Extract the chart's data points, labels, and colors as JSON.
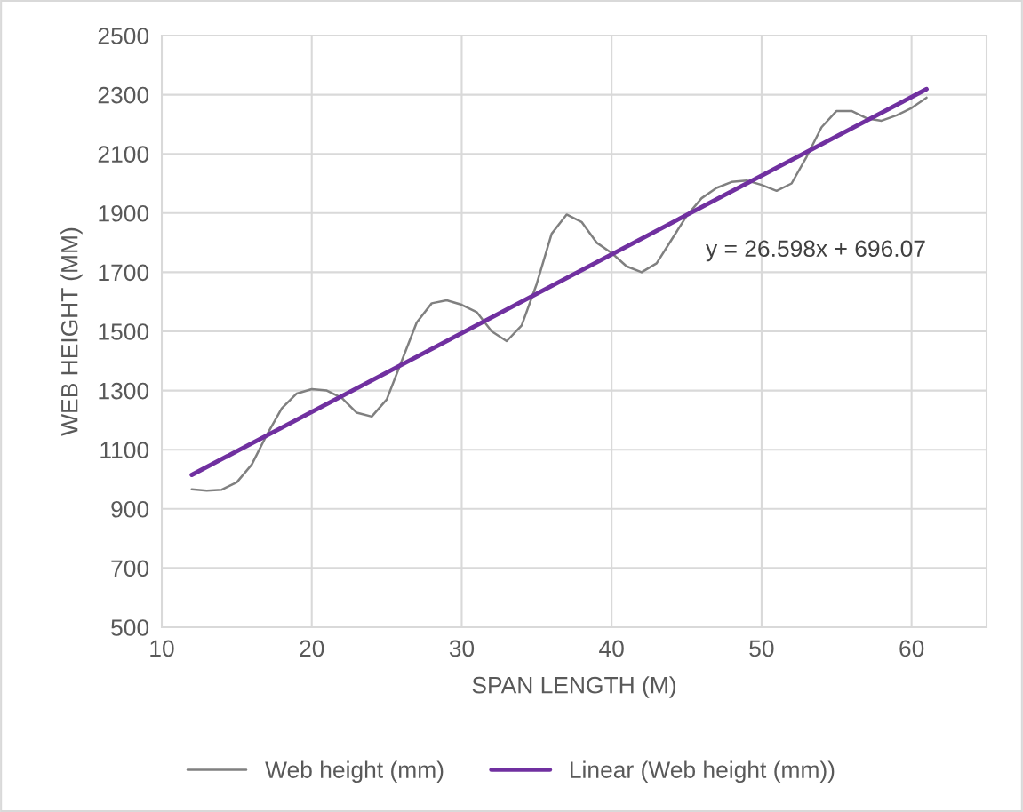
{
  "chart_data": {
    "type": "line",
    "xlabel": "SPAN LENGTH (M)",
    "ylabel": "WEB HEIGHT (MM)",
    "xlim": [
      10,
      65
    ],
    "xticks": [
      10,
      20,
      30,
      40,
      50,
      60
    ],
    "ylim": [
      500,
      2500
    ],
    "yticks": [
      500,
      700,
      900,
      1100,
      1300,
      1500,
      1700,
      1900,
      2100,
      2300,
      2500
    ],
    "grid": true,
    "legend": "bottom",
    "marker": "none",
    "line_style": "solid",
    "annotations": [
      "y = 26.598x + 696.07"
    ],
    "series": [
      {
        "name": "Web height (mm)",
        "color": "#808080",
        "x": [
          12,
          13,
          14,
          15,
          16,
          17,
          18,
          19,
          20,
          21,
          22,
          23,
          24,
          25,
          26,
          27,
          28,
          29,
          30,
          31,
          32,
          33,
          34,
          35,
          36,
          37,
          38,
          39,
          40,
          41,
          42,
          43,
          44,
          45,
          46,
          47,
          48,
          49,
          50,
          51,
          52,
          53,
          54,
          55,
          56,
          57,
          58,
          59,
          60,
          61
        ],
        "values": [
          966,
          962,
          965,
          990,
          1050,
          1150,
          1240,
          1290,
          1305,
          1300,
          1275,
          1225,
          1212,
          1270,
          1400,
          1530,
          1595,
          1605,
          1590,
          1565,
          1500,
          1467,
          1520,
          1660,
          1830,
          1895,
          1870,
          1800,
          1765,
          1720,
          1700,
          1730,
          1810,
          1890,
          1950,
          1985,
          2005,
          2010,
          1995,
          1975,
          2000,
          2090,
          2190,
          2245,
          2245,
          2220,
          2212,
          2230,
          2255,
          2290
        ]
      },
      {
        "name": "Linear (Web height (mm))",
        "color": "#7030a0",
        "x": [
          12.0,
          61.0
        ],
        "values": [
          1015,
          2319
        ]
      }
    ]
  }
}
